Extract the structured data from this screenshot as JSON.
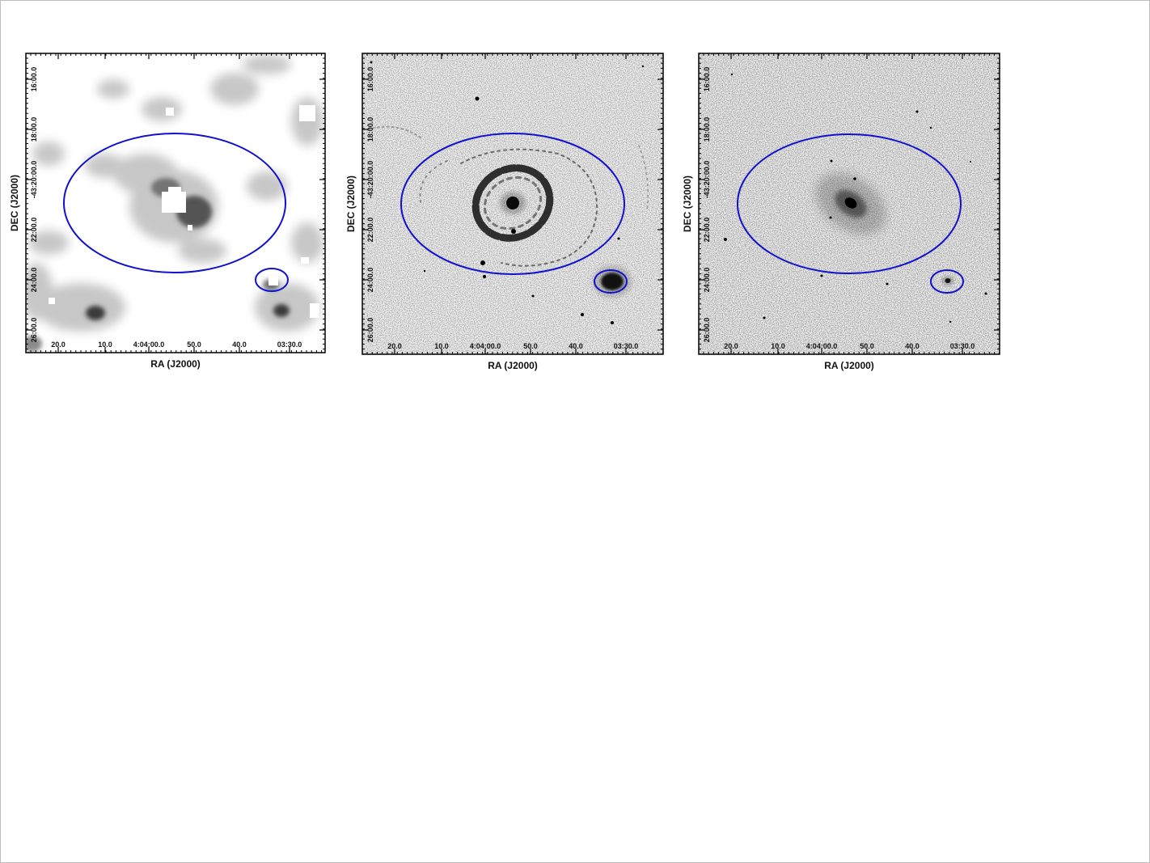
{
  "figure": {
    "axis_labels": {
      "x": "RA (J2000)",
      "y": "DEC (J2000)"
    },
    "x_ticks": [
      "20.0",
      "10.0",
      "4:04:00.0",
      "50.0",
      "40.0",
      "03:30.0"
    ],
    "y_ticks": [
      "16:00.0",
      "18:00.0",
      "-43:20:00.0",
      "22:00.0",
      "24:00.0",
      "26:00.0"
    ],
    "ellipse_color": "#1010d0",
    "panels": [
      {
        "id": "panel-1",
        "image_style": "smoothed-low-resolution-map",
        "galaxy_morphology": "clumpy emission with saturated white center"
      },
      {
        "id": "panel-2",
        "image_style": "optical-ring-spiral",
        "galaxy_morphology": "ring spiral with bright nucleus and outer arms"
      },
      {
        "id": "panel-3",
        "image_style": "near-infrared-elliptical",
        "galaxy_morphology": "smooth elongated stellar bulge"
      }
    ]
  }
}
